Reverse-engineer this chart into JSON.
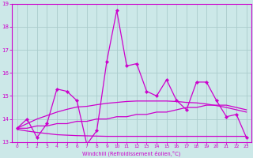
{
  "title": "",
  "xlabel": "Windchill (Refroidissement éolien,°C)",
  "ylabel": "",
  "bg_color": "#cce8e8",
  "grid_color": "#aacccc",
  "line_color": "#cc00cc",
  "xlim": [
    -0.5,
    23.5
  ],
  "ylim": [
    13,
    19
  ],
  "xticks": [
    0,
    1,
    2,
    3,
    4,
    5,
    6,
    7,
    8,
    9,
    10,
    11,
    12,
    13,
    14,
    15,
    16,
    17,
    18,
    19,
    20,
    21,
    22,
    23
  ],
  "yticks": [
    13,
    14,
    15,
    16,
    17,
    18,
    19
  ],
  "series1_x": [
    0,
    1,
    2,
    3,
    4,
    5,
    6,
    7,
    8,
    9,
    10,
    11,
    12,
    13,
    14,
    15,
    16,
    17,
    18,
    19,
    20,
    21,
    22,
    23
  ],
  "series1_y": [
    13.6,
    14.0,
    13.2,
    13.8,
    15.3,
    15.2,
    14.8,
    12.9,
    13.5,
    16.5,
    18.7,
    16.3,
    16.4,
    15.2,
    15.0,
    15.7,
    14.8,
    14.4,
    15.6,
    15.6,
    14.8,
    14.1,
    14.2,
    13.2
  ],
  "series2_x": [
    0,
    1,
    2,
    3,
    4,
    5,
    6,
    7,
    8,
    9,
    10,
    11,
    12,
    13,
    14,
    15,
    16,
    17,
    18,
    19,
    20,
    21,
    22,
    23
  ],
  "series2_y": [
    13.6,
    13.6,
    13.7,
    13.7,
    13.8,
    13.8,
    13.9,
    13.9,
    14.0,
    14.0,
    14.1,
    14.1,
    14.2,
    14.2,
    14.3,
    14.3,
    14.4,
    14.5,
    14.5,
    14.6,
    14.6,
    14.6,
    14.5,
    14.4
  ],
  "series3_x": [
    0,
    1,
    2,
    3,
    4,
    5,
    6,
    7,
    8,
    9,
    10,
    11,
    12,
    13,
    14,
    15,
    16,
    17,
    18,
    19,
    20,
    21,
    22,
    23
  ],
  "series3_y": [
    13.55,
    13.48,
    13.42,
    13.37,
    13.32,
    13.3,
    13.28,
    13.27,
    13.26,
    13.25,
    13.25,
    13.25,
    13.25,
    13.25,
    13.25,
    13.25,
    13.25,
    13.25,
    13.25,
    13.25,
    13.25,
    13.25,
    13.25,
    13.25
  ],
  "series4_x": [
    0,
    1,
    2,
    3,
    4,
    5,
    6,
    7,
    8,
    9,
    10,
    11,
    12,
    13,
    14,
    15,
    16,
    17,
    18,
    19,
    20,
    21,
    22,
    23
  ],
  "series4_y": [
    13.6,
    13.8,
    14.0,
    14.15,
    14.3,
    14.42,
    14.52,
    14.55,
    14.62,
    14.68,
    14.72,
    14.76,
    14.78,
    14.78,
    14.78,
    14.78,
    14.76,
    14.72,
    14.7,
    14.65,
    14.58,
    14.5,
    14.4,
    14.3
  ]
}
